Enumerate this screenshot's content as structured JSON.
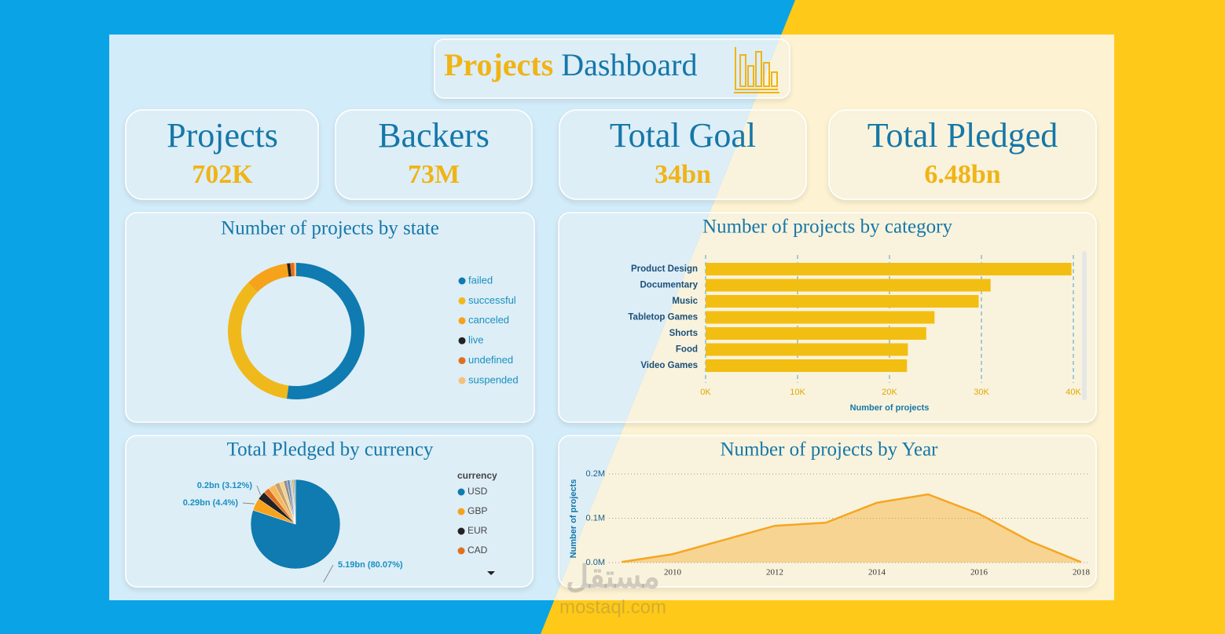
{
  "title": {
    "accent": "Projects",
    "rest": "Dashboard"
  },
  "kpis": [
    {
      "label": "Projects",
      "value": "702K"
    },
    {
      "label": "Backers",
      "value": "73M"
    },
    {
      "label": "Total Goal",
      "value": "34bn"
    },
    {
      "label": "Total Pledged",
      "value": "6.48bn"
    }
  ],
  "watermark": {
    "arabic": "مستقل",
    "latin": "mostaql.com"
  },
  "chart_data": [
    {
      "type": "donut",
      "title": "Number of projects by state",
      "categories": [
        "failed",
        "successful",
        "canceled",
        "live",
        "undefined",
        "suspended"
      ],
      "values": [
        197719,
        133956,
        38779,
        2799,
        3562,
        1846
      ],
      "colors": [
        "#0f7bb0",
        "#f0b91b",
        "#f7a21b",
        "#222222",
        "#e07020",
        "#f7c07a"
      ]
    },
    {
      "type": "hbar",
      "title": "Number of projects by category",
      "categories": [
        "Product Design",
        "Documentary",
        "Music",
        "Tabletop Games",
        "Shorts",
        "Food",
        "Video Games"
      ],
      "values": [
        39800,
        31000,
        29700,
        24900,
        24000,
        22000,
        21900
      ],
      "color": "#f2be12",
      "xlabel": "Number of projects",
      "xlim": [
        0,
        40000
      ],
      "xticks": [
        {
          "value": 0,
          "label": "0K"
        },
        {
          "value": 10000,
          "label": "10K"
        },
        {
          "value": 20000,
          "label": "20K"
        },
        {
          "value": 30000,
          "label": "30K"
        },
        {
          "value": 40000,
          "label": "40K"
        }
      ],
      "grid": true
    },
    {
      "type": "pie",
      "title": "Total Pledged by currency",
      "legend_title": "currency",
      "categories": [
        "USD",
        "GBP",
        "EUR",
        "CAD",
        null,
        null,
        null,
        null,
        null,
        null,
        null,
        null
      ],
      "values": [
        5.19,
        0.29,
        0.2,
        0.14,
        0.16,
        0.12,
        0.1,
        0.08,
        0.07,
        0.05,
        0.04,
        0.04
      ],
      "value_labels": [
        "5.19bn (80.07%)",
        "0.29bn (4.4%)",
        "0.2bn (3.12%)",
        null,
        null,
        null,
        null,
        null,
        null,
        null,
        null,
        null
      ],
      "colors": [
        "#0f7bb0",
        "#f7a21b",
        "#222222",
        "#e07020",
        "#f5b95c",
        "#c9a26a",
        "#f4d08a",
        "#8e8e8e",
        "#6b8fb3",
        "#b5c7d6",
        "#d9a441",
        "#7aa6c9"
      ]
    },
    {
      "type": "area",
      "title": "Number of projects by Year",
      "ylabel": "Number of projects",
      "x": [
        2009,
        2010,
        2011,
        2012,
        2013,
        2014,
        2015,
        2016,
        2017,
        2018
      ],
      "values": [
        1300,
        19000,
        51000,
        83000,
        90000,
        135000,
        154000,
        110000,
        48000,
        1000
      ],
      "color": "#f5a623",
      "xlim": [
        2009,
        2018
      ],
      "xticks": [
        2010,
        2012,
        2014,
        2016,
        2018
      ],
      "ylim": [
        0,
        200000
      ],
      "yticks": [
        {
          "value": 0,
          "label": "0.0M"
        },
        {
          "value": 100000,
          "label": "0.1M"
        },
        {
          "value": 200000,
          "label": "0.2M"
        }
      ],
      "grid": true
    }
  ]
}
